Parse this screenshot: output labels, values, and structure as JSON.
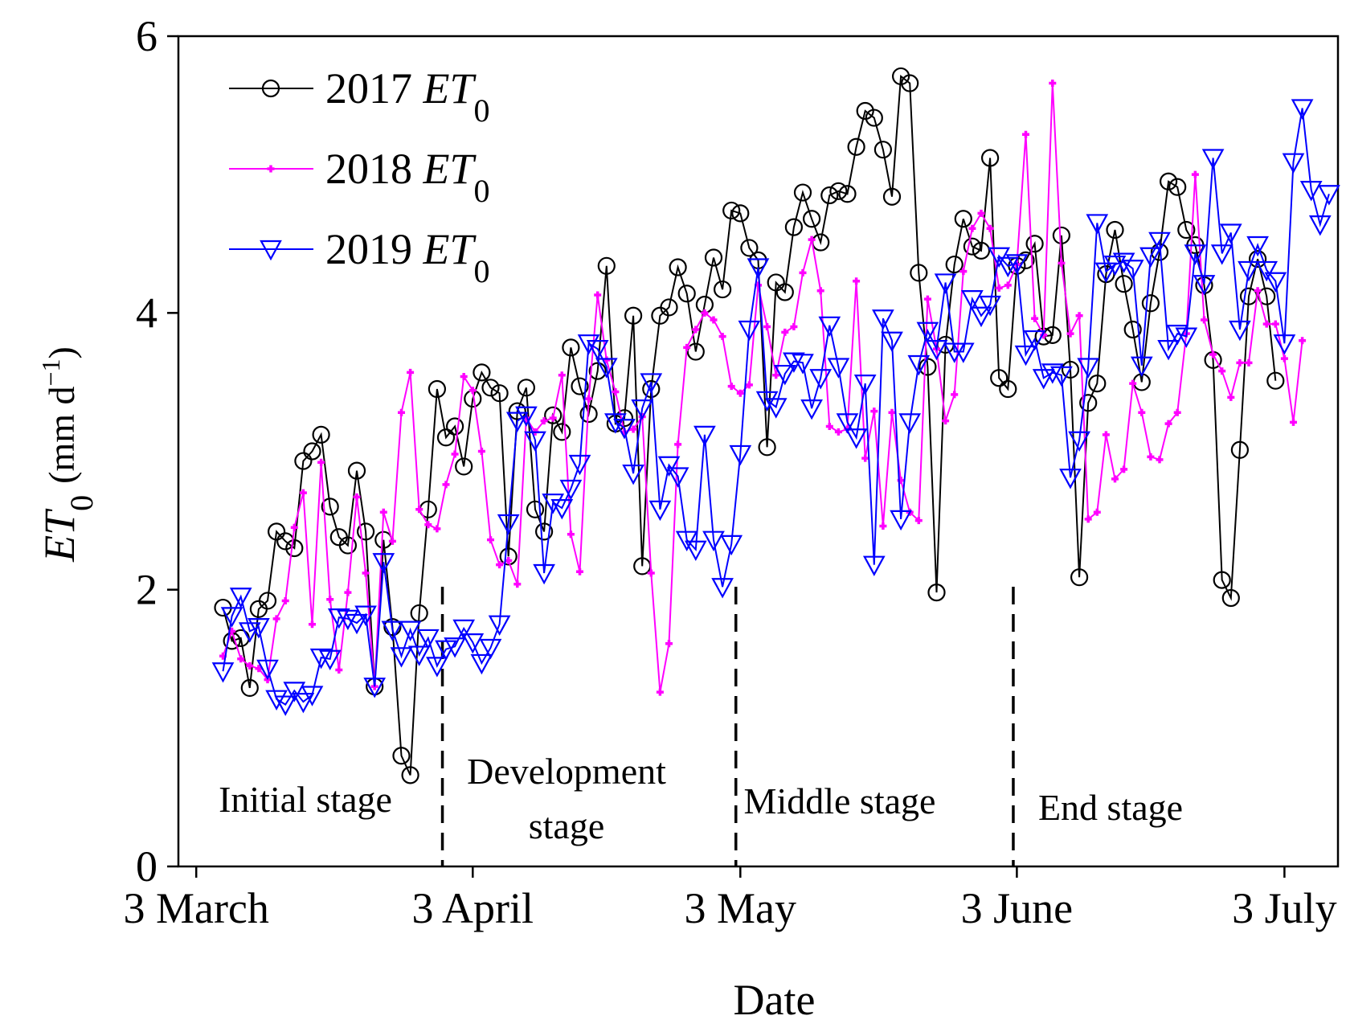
{
  "chart_data": {
    "type": "line",
    "xlabel": "Date",
    "ylabel_main": "ET",
    "ylabel_sub": "0",
    "ylabel_unit_open": "(mm d",
    "ylabel_unit_sup": "−1",
    "ylabel_unit_close": ")",
    "ylim": [
      0,
      6
    ],
    "xlim": [
      -1,
      129
    ],
    "yticks": [
      0,
      2,
      4,
      6
    ],
    "ytick_labels": [
      "0",
      "2",
      "4",
      "6"
    ],
    "xticks": [
      {
        "day": 1,
        "label": "3 March"
      },
      {
        "day": 32,
        "label": "3 April"
      },
      {
        "day": 62,
        "label": "3 May"
      },
      {
        "day": 93,
        "label": "3 June"
      },
      {
        "day": 123,
        "label": "3 July"
      }
    ],
    "stage_boundaries": [
      28.6,
      61.5,
      92.6
    ],
    "stages": [
      {
        "line1": "Initial stage",
        "line2": ""
      },
      {
        "line1": "Development",
        "line2": "stage"
      },
      {
        "line1": "Middle stage",
        "line2": ""
      },
      {
        "line1": "End stage",
        "line2": ""
      }
    ],
    "series": [
      {
        "name": "2017",
        "legend_year": "2017",
        "legend_et": "ET",
        "legend_sub": "0",
        "color": "#000000",
        "marker": "circle",
        "start_day": 4,
        "values": [
          1.87,
          1.63,
          1.65,
          1.29,
          1.86,
          1.92,
          2.42,
          2.35,
          2.3,
          2.93,
          3.0,
          3.12,
          2.6,
          2.38,
          2.32,
          2.86,
          2.42,
          1.3,
          2.36,
          1.73,
          0.8,
          0.66,
          1.83,
          2.58,
          3.45,
          3.1,
          3.18,
          2.89,
          3.38,
          3.57,
          3.46,
          3.42,
          2.24,
          3.29,
          3.46,
          2.58,
          2.42,
          3.26,
          3.14,
          3.75,
          3.47,
          3.27,
          3.58,
          4.34,
          3.2,
          3.24,
          3.98,
          2.17,
          3.45,
          3.98,
          4.04,
          4.33,
          4.14,
          3.72,
          4.06,
          4.4,
          4.17,
          4.74,
          4.72,
          4.47,
          4.38,
          3.03,
          4.22,
          4.15,
          4.62,
          4.87,
          4.68,
          4.51,
          4.85,
          4.88,
          4.86,
          5.2,
          5.46,
          5.41,
          5.18,
          4.84,
          5.71,
          5.66,
          4.29,
          3.61,
          1.98,
          3.77,
          4.35,
          4.68,
          4.48,
          4.45,
          5.12,
          3.53,
          3.45,
          4.34,
          4.38,
          4.5,
          3.83,
          3.84,
          4.56,
          3.59,
          2.09,
          3.35,
          3.49,
          4.28,
          4.6,
          4.21,
          3.88,
          3.5,
          4.07,
          4.44,
          4.95,
          4.91,
          4.6,
          4.49,
          4.2,
          3.66,
          2.07,
          1.94,
          3.01,
          4.12,
          4.39,
          4.12,
          3.51
        ]
      },
      {
        "name": "2018",
        "legend_year": "2018",
        "legend_et": "ET",
        "legend_sub": "0",
        "color": "#ff00ff",
        "marker": "plus",
        "start_day": 4,
        "values": [
          1.52,
          1.7,
          1.5,
          1.45,
          1.43,
          1.35,
          1.79,
          1.92,
          2.45,
          2.7,
          1.75,
          2.92,
          1.93,
          1.42,
          1.98,
          2.67,
          2.12,
          1.3,
          2.56,
          2.35,
          3.28,
          3.57,
          2.58,
          2.47,
          2.44,
          2.76,
          2.98,
          3.54,
          3.44,
          3.0,
          2.36,
          2.18,
          2.21,
          2.04,
          3.24,
          3.14,
          3.22,
          3.24,
          3.55,
          2.4,
          2.13,
          3.38,
          4.13,
          3.66,
          3.43,
          3.14,
          3.16,
          3.25,
          2.12,
          1.26,
          1.61,
          3.05,
          3.75,
          3.88,
          4.0,
          3.95,
          3.83,
          3.47,
          3.42,
          3.48,
          4.2,
          3.9,
          3.55,
          3.86,
          3.9,
          4.29,
          4.53,
          4.16,
          3.18,
          3.14,
          3.16,
          4.23,
          2.95,
          3.29,
          2.46,
          3.28,
          2.79,
          2.56,
          2.5,
          4.1,
          3.74,
          3.22,
          3.41,
          4.3,
          4.61,
          4.72,
          4.61,
          4.18,
          4.2,
          4.35,
          5.29,
          3.96,
          3.84,
          5.66,
          4.36,
          3.85,
          3.98,
          2.51,
          2.56,
          3.12,
          2.8,
          2.87,
          3.49,
          3.28,
          2.96,
          2.94,
          3.2,
          3.28,
          3.85,
          5.0,
          3.95,
          3.7,
          3.58,
          3.39,
          3.64,
          3.64,
          4.16,
          3.92,
          3.92,
          3.67,
          3.21,
          3.8
        ]
      },
      {
        "name": "2019",
        "legend_year": "2019",
        "legend_et": "ET",
        "legend_sub": "0",
        "color": "#0000ff",
        "marker": "triangle-down",
        "start_day": 4,
        "values": [
          1.41,
          1.81,
          1.95,
          1.7,
          1.73,
          1.43,
          1.21,
          1.17,
          1.27,
          1.19,
          1.24,
          1.51,
          1.5,
          1.8,
          1.79,
          1.76,
          1.82,
          1.3,
          2.2,
          1.71,
          1.52,
          1.71,
          1.53,
          1.65,
          1.45,
          1.57,
          1.59,
          1.72,
          1.62,
          1.47,
          1.58,
          1.75,
          2.48,
          3.22,
          3.26,
          3.08,
          2.12,
          2.63,
          2.59,
          2.73,
          2.91,
          3.78,
          3.74,
          3.61,
          3.21,
          3.17,
          2.84,
          3.31,
          3.5,
          2.58,
          2.9,
          2.82,
          2.36,
          2.29,
          3.12,
          2.36,
          2.02,
          2.33,
          2.98,
          3.88,
          4.33,
          3.37,
          3.32,
          3.56,
          3.65,
          3.64,
          3.31,
          3.53,
          3.91,
          3.61,
          3.21,
          3.1,
          3.49,
          2.18,
          3.96,
          3.8,
          2.51,
          3.21,
          3.63,
          3.87,
          3.74,
          4.22,
          3.72,
          3.72,
          4.1,
          3.98,
          4.06,
          4.41,
          4.34,
          4.36,
          3.7,
          3.81,
          3.53,
          3.57,
          3.55,
          2.81,
          3.08,
          3.61,
          4.65,
          4.3,
          4.35,
          4.37,
          4.32,
          3.62,
          4.41,
          4.52,
          3.74,
          3.85,
          3.83,
          4.43,
          4.21,
          5.12,
          4.43,
          4.58,
          3.88,
          4.31,
          4.49,
          4.31,
          4.23,
          3.78,
          5.09,
          5.48,
          4.89,
          4.64,
          4.86
        ]
      }
    ]
  }
}
